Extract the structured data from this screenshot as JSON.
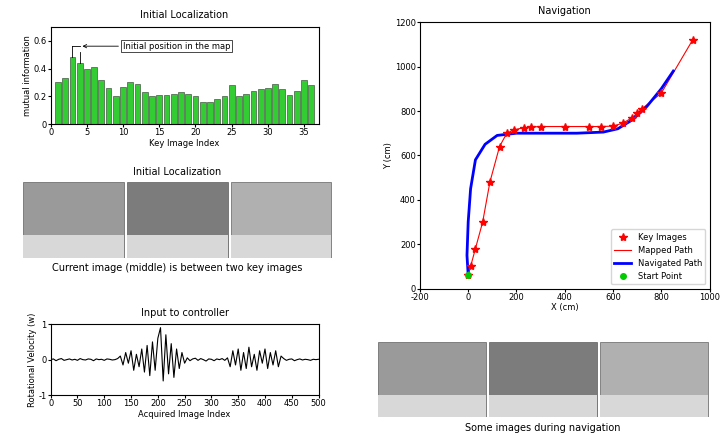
{
  "chart_data": [
    {
      "type": "bar",
      "title": "Initial Localization",
      "x_label": "Key Image Index",
      "y_label": "mutual information",
      "x": [
        1,
        2,
        3,
        4,
        5,
        6,
        7,
        8,
        9,
        10,
        11,
        12,
        13,
        14,
        15,
        16,
        17,
        18,
        19,
        20,
        21,
        22,
        23,
        24,
        25,
        26,
        27,
        28,
        29,
        30,
        31,
        32,
        33,
        34,
        35,
        36
      ],
      "values": [
        0.3,
        0.33,
        0.48,
        0.44,
        0.4,
        0.41,
        0.32,
        0.26,
        0.2,
        0.27,
        0.3,
        0.29,
        0.23,
        0.2,
        0.21,
        0.21,
        0.22,
        0.23,
        0.22,
        0.2,
        0.16,
        0.16,
        0.18,
        0.2,
        0.28,
        0.2,
        0.22,
        0.24,
        0.25,
        0.26,
        0.29,
        0.25,
        0.21,
        0.24,
        0.32,
        0.28
      ],
      "color": "#33cc33",
      "xlim": [
        0,
        37
      ],
      "xticks": [
        0,
        5,
        10,
        15,
        20,
        25,
        30,
        35
      ],
      "ylim": [
        0,
        0.7
      ],
      "yticks": [
        0,
        0.2,
        0.4,
        0.6
      ],
      "annotation": {
        "text": "Initial position in the map",
        "bars": [
          3,
          4
        ]
      }
    },
    {
      "type": "line",
      "title": "Input to controller",
      "x_label": "Acquired Image Index",
      "y_label": "Rotational Velocity (w)",
      "x": [
        0,
        5,
        10,
        15,
        20,
        25,
        30,
        35,
        40,
        45,
        50,
        55,
        60,
        65,
        70,
        75,
        80,
        85,
        90,
        95,
        100,
        105,
        110,
        115,
        120,
        125,
        130,
        135,
        140,
        145,
        150,
        155,
        160,
        165,
        170,
        175,
        180,
        185,
        190,
        195,
        200,
        205,
        210,
        215,
        220,
        225,
        230,
        235,
        240,
        245,
        250,
        255,
        260,
        265,
        270,
        275,
        280,
        285,
        290,
        295,
        300,
        305,
        310,
        315,
        320,
        325,
        330,
        335,
        340,
        345,
        350,
        355,
        360,
        365,
        370,
        375,
        380,
        385,
        390,
        395,
        400,
        405,
        410,
        415,
        420,
        425,
        430,
        435,
        440,
        445,
        450,
        455,
        460,
        465,
        470,
        475,
        480,
        485,
        490,
        495,
        500
      ],
      "values": [
        0,
        0.02,
        -0.03,
        0.01,
        0.03,
        -0.02,
        0,
        0.02,
        -0.01,
        0.01,
        -0.02,
        0.03,
        0,
        -0.01,
        0.02,
        0.01,
        -0.03,
        0.02,
        0,
        0.01,
        -0.02,
        0.02,
        0.01,
        -0.01,
        0,
        0.03,
        0.1,
        -0.15,
        0.2,
        -0.1,
        0.25,
        -0.3,
        0.15,
        -0.2,
        0.3,
        -0.35,
        0.4,
        -0.45,
        0.5,
        -0.3,
        0.6,
        0.9,
        -0.6,
        0.7,
        -0.4,
        0.45,
        -0.5,
        0.3,
        -0.25,
        0.2,
        -0.1,
        0.05,
        -0.03,
        0.02,
        0.04,
        -0.02,
        0.03,
        0,
        -0.04,
        0.02,
        0.01,
        -0.03,
        0.02,
        0,
        0.03,
        -0.02,
        0.05,
        -0.2,
        0.25,
        -0.15,
        0.3,
        -0.3,
        0.2,
        -0.25,
        0.35,
        -0.2,
        0.15,
        -0.3,
        0.25,
        -0.1,
        0.3,
        -0.25,
        0.2,
        -0.15,
        0.25,
        -0.2,
        0.1,
        0.03,
        -0.02,
        0.01,
        0.02,
        -0.03,
        0,
        0.02,
        -0.01,
        0.01,
        0,
        -0.02,
        0.01,
        0,
        0.01
      ],
      "color": "#000000",
      "xlim": [
        0,
        500
      ],
      "xticks": [
        0,
        50,
        100,
        150,
        200,
        250,
        300,
        350,
        400,
        450,
        500
      ],
      "ylim": [
        -1,
        1
      ],
      "yticks": [
        -1,
        0,
        1
      ]
    },
    {
      "type": "line",
      "title": "Navigation",
      "x_label": "X (cm)",
      "y_label": "Y (cm)",
      "xlim": [
        -200,
        1000
      ],
      "xticks": [
        -200,
        0,
        200,
        400,
        600,
        800,
        1000
      ],
      "ylim": [
        0,
        1200
      ],
      "yticks": [
        0,
        200,
        400,
        600,
        800,
        1000,
        1200
      ],
      "legend": "lower right",
      "series": [
        {
          "name": "Key Images",
          "type": "scatter",
          "marker": "*",
          "color": "#ff0000",
          "x": [
            0,
            10,
            30,
            60,
            90,
            130,
            160,
            190,
            230,
            260,
            300,
            400,
            500,
            550,
            600,
            640,
            680,
            700,
            720,
            800,
            930
          ],
          "values": [
            60,
            100,
            180,
            300,
            480,
            640,
            700,
            715,
            725,
            728,
            730,
            730,
            730,
            730,
            732,
            745,
            770,
            790,
            810,
            880,
            1120
          ]
        },
        {
          "name": "Mapped Path",
          "type": "line",
          "line_style": "solid",
          "color": "#ff0000",
          "x": [
            0,
            10,
            30,
            60,
            90,
            130,
            160,
            190,
            230,
            260,
            300,
            400,
            500,
            550,
            600,
            640,
            680,
            700,
            720,
            800,
            930
          ],
          "values": [
            60,
            100,
            180,
            300,
            480,
            640,
            700,
            715,
            725,
            728,
            730,
            730,
            730,
            730,
            732,
            745,
            770,
            790,
            810,
            880,
            1120
          ]
        },
        {
          "name": "Navigated Path",
          "type": "line",
          "line_style": "solid",
          "color": "#0000ff",
          "x": [
            0,
            -5,
            0,
            10,
            30,
            70,
            120,
            200,
            300,
            450,
            560,
            620,
            680,
            740,
            800,
            850
          ],
          "values": [
            60,
            150,
            300,
            450,
            580,
            650,
            690,
            700,
            700,
            700,
            705,
            720,
            760,
            820,
            900,
            980
          ]
        },
        {
          "name": "Start Point",
          "type": "scatter",
          "marker": "o",
          "color": "#00cc00",
          "x": [
            0
          ],
          "values": [
            60
          ]
        }
      ]
    }
  ],
  "image_panels": [
    {
      "title": "Initial Localization",
      "caption": "Current image (middle) is between two key images",
      "count": 3
    },
    {
      "caption": "Some images during navigation",
      "count": 3
    }
  ]
}
